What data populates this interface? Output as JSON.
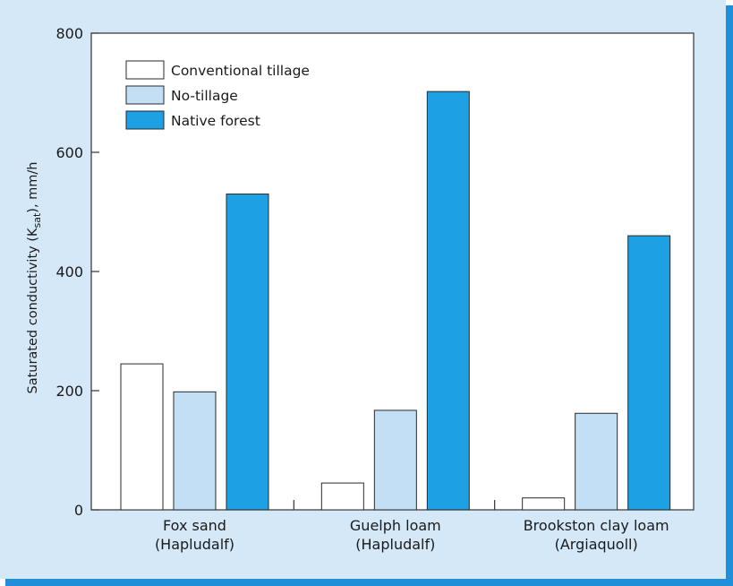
{
  "chart_data": {
    "type": "bar",
    "ylabel_prefix": "Saturated conductivity (K",
    "ylabel_sub": "sat",
    "ylabel_suffix": "), mm/h",
    "ylim": [
      0,
      800
    ],
    "yticks": [
      0,
      200,
      400,
      600,
      800
    ],
    "grid": false,
    "legend_position": "top-left",
    "categories": [
      {
        "line1": "Fox sand",
        "line2": "(Hapludalf)"
      },
      {
        "line1": "Guelph loam",
        "line2": "(Hapludalf)"
      },
      {
        "line1": "Brookston clay loam",
        "line2": "(Argiaquoll)"
      }
    ],
    "series": [
      {
        "name": "Conventional tillage",
        "color": "#ffffff",
        "values": [
          245,
          45,
          20
        ]
      },
      {
        "name": "No-tillage",
        "color": "#c2dff6",
        "values": [
          198,
          167,
          162
        ]
      },
      {
        "name": "Native forest",
        "color": "#1ea0e4",
        "values": [
          530,
          702,
          460
        ]
      }
    ]
  },
  "colors": {
    "panel_background": "#d5e8f8",
    "panel_border": "#1e8fd8",
    "plot_background": "#ffffff"
  }
}
